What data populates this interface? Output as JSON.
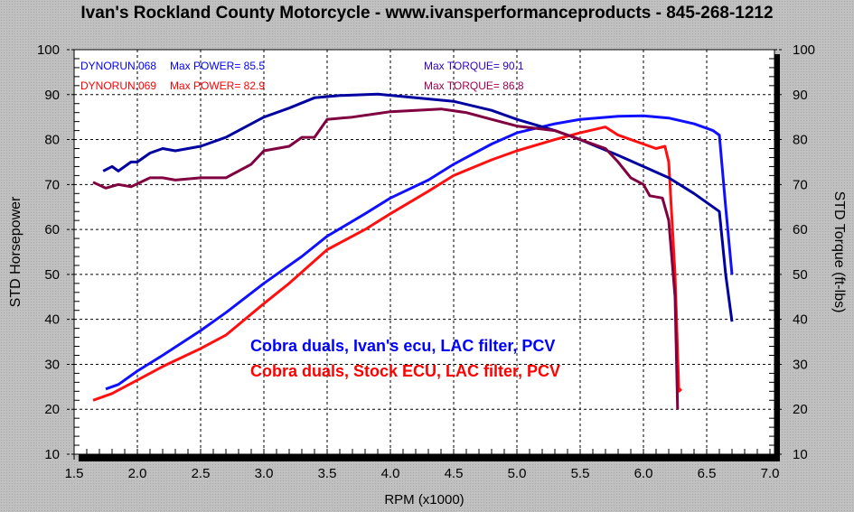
{
  "chart_data": {
    "type": "line",
    "title": "Ivan's Rockland County Motorcycle - www.ivansperformanceproducts - 845-268-1212",
    "xlabel": "RPM (x1000)",
    "ylabel": "STD Horsepower",
    "y2label": "STD Torque (ft-lbs)",
    "xlim": [
      1.5,
      7.0
    ],
    "ylim": [
      10,
      100
    ],
    "y2lim": [
      10,
      100
    ],
    "xticks": [
      "1.5",
      "2.0",
      "2.5",
      "3.0",
      "3.5",
      "4.0",
      "4.5",
      "5.0",
      "5.5",
      "6.0",
      "6.5",
      "7.0"
    ],
    "yticks": [
      "10",
      "20",
      "30",
      "40",
      "50",
      "60",
      "70",
      "80",
      "90",
      "100"
    ],
    "grid": true,
    "info": [
      {
        "run": "DYNORUN.068",
        "power": "Max POWER= 85.5",
        "torque": "Max TORQUE= 90.1",
        "color": "#0000ff",
        "tcolor": "#3000c0"
      },
      {
        "run": "DYNORUN.069",
        "power": "Max POWER= 82.9",
        "torque": "Max TORQUE= 86.8",
        "color": "#ff0000",
        "tcolor": "#a00050"
      }
    ],
    "legend": [
      {
        "label": "Cobra duals, Ivan's ecu, LAC filter, PCV",
        "color": "#0000ff"
      },
      {
        "label": "Cobra duals, Stock ECU, LAC filter, PCV",
        "color": "#ff0000"
      }
    ],
    "series": [
      {
        "run": "DYNORUN.068",
        "measure": "horsepower",
        "color": "#1010ff",
        "x": [
          1.75,
          1.85,
          2.0,
          2.2,
          2.5,
          2.7,
          3.0,
          3.3,
          3.5,
          3.8,
          4.0,
          4.3,
          4.5,
          4.8,
          5.0,
          5.3,
          5.5,
          5.8,
          6.0,
          6.2,
          6.4,
          6.55,
          6.6,
          6.65,
          6.7
        ],
        "y": [
          24.5,
          25.5,
          28.5,
          32,
          37.5,
          41.5,
          48,
          54,
          58.5,
          63.5,
          67,
          71,
          74.5,
          79,
          81.5,
          83.5,
          84.5,
          85.2,
          85.3,
          84.8,
          83.5,
          82,
          81,
          65,
          50
        ]
      },
      {
        "run": "DYNORUN.069",
        "measure": "horsepower",
        "color": "#ff1010",
        "x": [
          1.65,
          1.8,
          2.0,
          2.2,
          2.5,
          2.7,
          3.0,
          3.2,
          3.5,
          3.8,
          4.0,
          4.3,
          4.5,
          4.8,
          5.0,
          5.3,
          5.5,
          5.7,
          5.8,
          5.9,
          6.0,
          6.1,
          6.17,
          6.2,
          6.25,
          6.28,
          6.3
        ],
        "y": [
          22,
          23.5,
          26.5,
          29.5,
          33.5,
          36.5,
          43.5,
          48,
          55.5,
          60,
          63.5,
          68.5,
          72,
          75.5,
          77.5,
          80,
          81.5,
          82.8,
          81,
          80,
          79,
          78,
          78.5,
          75,
          50,
          24,
          24.5
        ]
      },
      {
        "run": "DYNORUN.068",
        "measure": "torque",
        "color": "#0000a0",
        "x": [
          1.73,
          1.8,
          1.85,
          1.95,
          2.0,
          2.1,
          2.2,
          2.3,
          2.5,
          2.7,
          3.0,
          3.2,
          3.4,
          3.6,
          3.9,
          4.2,
          4.5,
          4.8,
          5.0,
          5.3,
          5.5,
          5.8,
          6.0,
          6.2,
          6.4,
          6.6,
          6.65,
          6.7
        ],
        "y": [
          73,
          74,
          73,
          75,
          75,
          77,
          78,
          77.5,
          78.5,
          80.5,
          85,
          87,
          89.3,
          89.8,
          90.1,
          89.3,
          88.5,
          86.5,
          84.5,
          82,
          80,
          76.5,
          74,
          71.5,
          68,
          64,
          50,
          39.5
        ]
      },
      {
        "run": "DYNORUN.069",
        "measure": "torque",
        "color": "#800040",
        "x": [
          1.65,
          1.75,
          1.85,
          1.95,
          2.1,
          2.2,
          2.3,
          2.5,
          2.7,
          2.9,
          3.0,
          3.2,
          3.3,
          3.4,
          3.5,
          3.7,
          4.0,
          4.2,
          4.4,
          4.6,
          4.8,
          5.0,
          5.3,
          5.5,
          5.7,
          5.8,
          5.9,
          6.0,
          6.05,
          6.15,
          6.2,
          6.25,
          6.27
        ],
        "y": [
          70.5,
          69.2,
          70,
          69.5,
          71.5,
          71.5,
          71,
          71.5,
          71.5,
          74.5,
          77.5,
          78.5,
          80.5,
          80.5,
          84.5,
          85,
          86.2,
          86.5,
          86.8,
          86,
          84.5,
          83,
          82,
          80,
          78,
          75,
          71.5,
          70,
          67.5,
          67,
          62,
          45,
          20
        ]
      }
    ]
  }
}
